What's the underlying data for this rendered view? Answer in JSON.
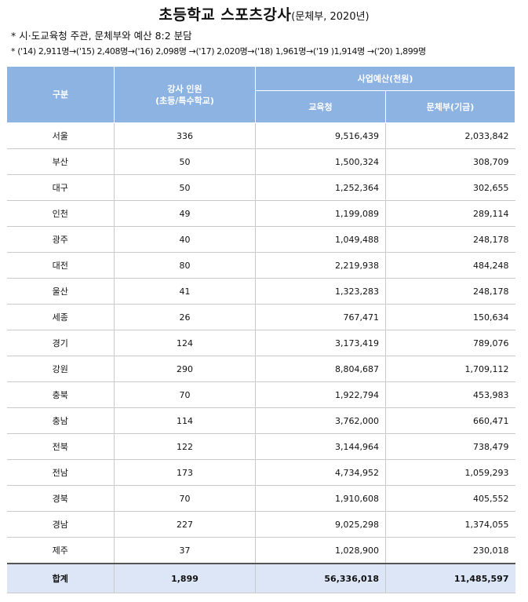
{
  "title": {
    "main": "초등학교 스포츠강사",
    "sub": "(문체부, 2020년)"
  },
  "notes": [
    "* 시·도교육청 주관, 문체부와 예산 8:2 분담",
    "* ('14) 2,911명→('15) 2,408명→('16) 2,098명 →('17) 2,020명→('18) 1,961명→('19 )1,914명 →('20) 1,899명"
  ],
  "table": {
    "headers": {
      "region": "구분",
      "instructors_line1": "강사 인원",
      "instructors_line2": "(초등/특수학교)",
      "budget": "사업예산(천원)",
      "edu": "교육청",
      "mcst": "문체부(기금)"
    },
    "rows": [
      {
        "region": "서울",
        "count": "336",
        "edu": "9,516,439",
        "mcst": "2,033,842"
      },
      {
        "region": "부산",
        "count": "50",
        "edu": "1,500,324",
        "mcst": "308,709"
      },
      {
        "region": "대구",
        "count": "50",
        "edu": "1,252,364",
        "mcst": "302,655"
      },
      {
        "region": "인천",
        "count": "49",
        "edu": "1,199,089",
        "mcst": "289,114"
      },
      {
        "region": "광주",
        "count": "40",
        "edu": "1,049,488",
        "mcst": "248,178"
      },
      {
        "region": "대전",
        "count": "80",
        "edu": "2,219,938",
        "mcst": "484,248"
      },
      {
        "region": "울산",
        "count": "41",
        "edu": "1,323,283",
        "mcst": "248,178"
      },
      {
        "region": "세종",
        "count": "26",
        "edu": "767,471",
        "mcst": "150,634"
      },
      {
        "region": "경기",
        "count": "124",
        "edu": "3,173,419",
        "mcst": "789,076"
      },
      {
        "region": "강원",
        "count": "290",
        "edu": "8,804,687",
        "mcst": "1,709,112"
      },
      {
        "region": "충북",
        "count": "70",
        "edu": "1,922,794",
        "mcst": "453,983"
      },
      {
        "region": "충남",
        "count": "114",
        "edu": "3,762,000",
        "mcst": "660,471"
      },
      {
        "region": "전북",
        "count": "122",
        "edu": "3,144,964",
        "mcst": "738,479"
      },
      {
        "region": "전남",
        "count": "173",
        "edu": "4,734,952",
        "mcst": "1,059,293"
      },
      {
        "region": "경북",
        "count": "70",
        "edu": "1,910,608",
        "mcst": "405,552"
      },
      {
        "region": "경남",
        "count": "227",
        "edu": "9,025,298",
        "mcst": "1,374,055"
      },
      {
        "region": "제주",
        "count": "37",
        "edu": "1,028,900",
        "mcst": "230,018"
      }
    ],
    "total": {
      "region": "합계",
      "count": "1,899",
      "edu": "56,336,018",
      "mcst": "11,485,597"
    }
  }
}
